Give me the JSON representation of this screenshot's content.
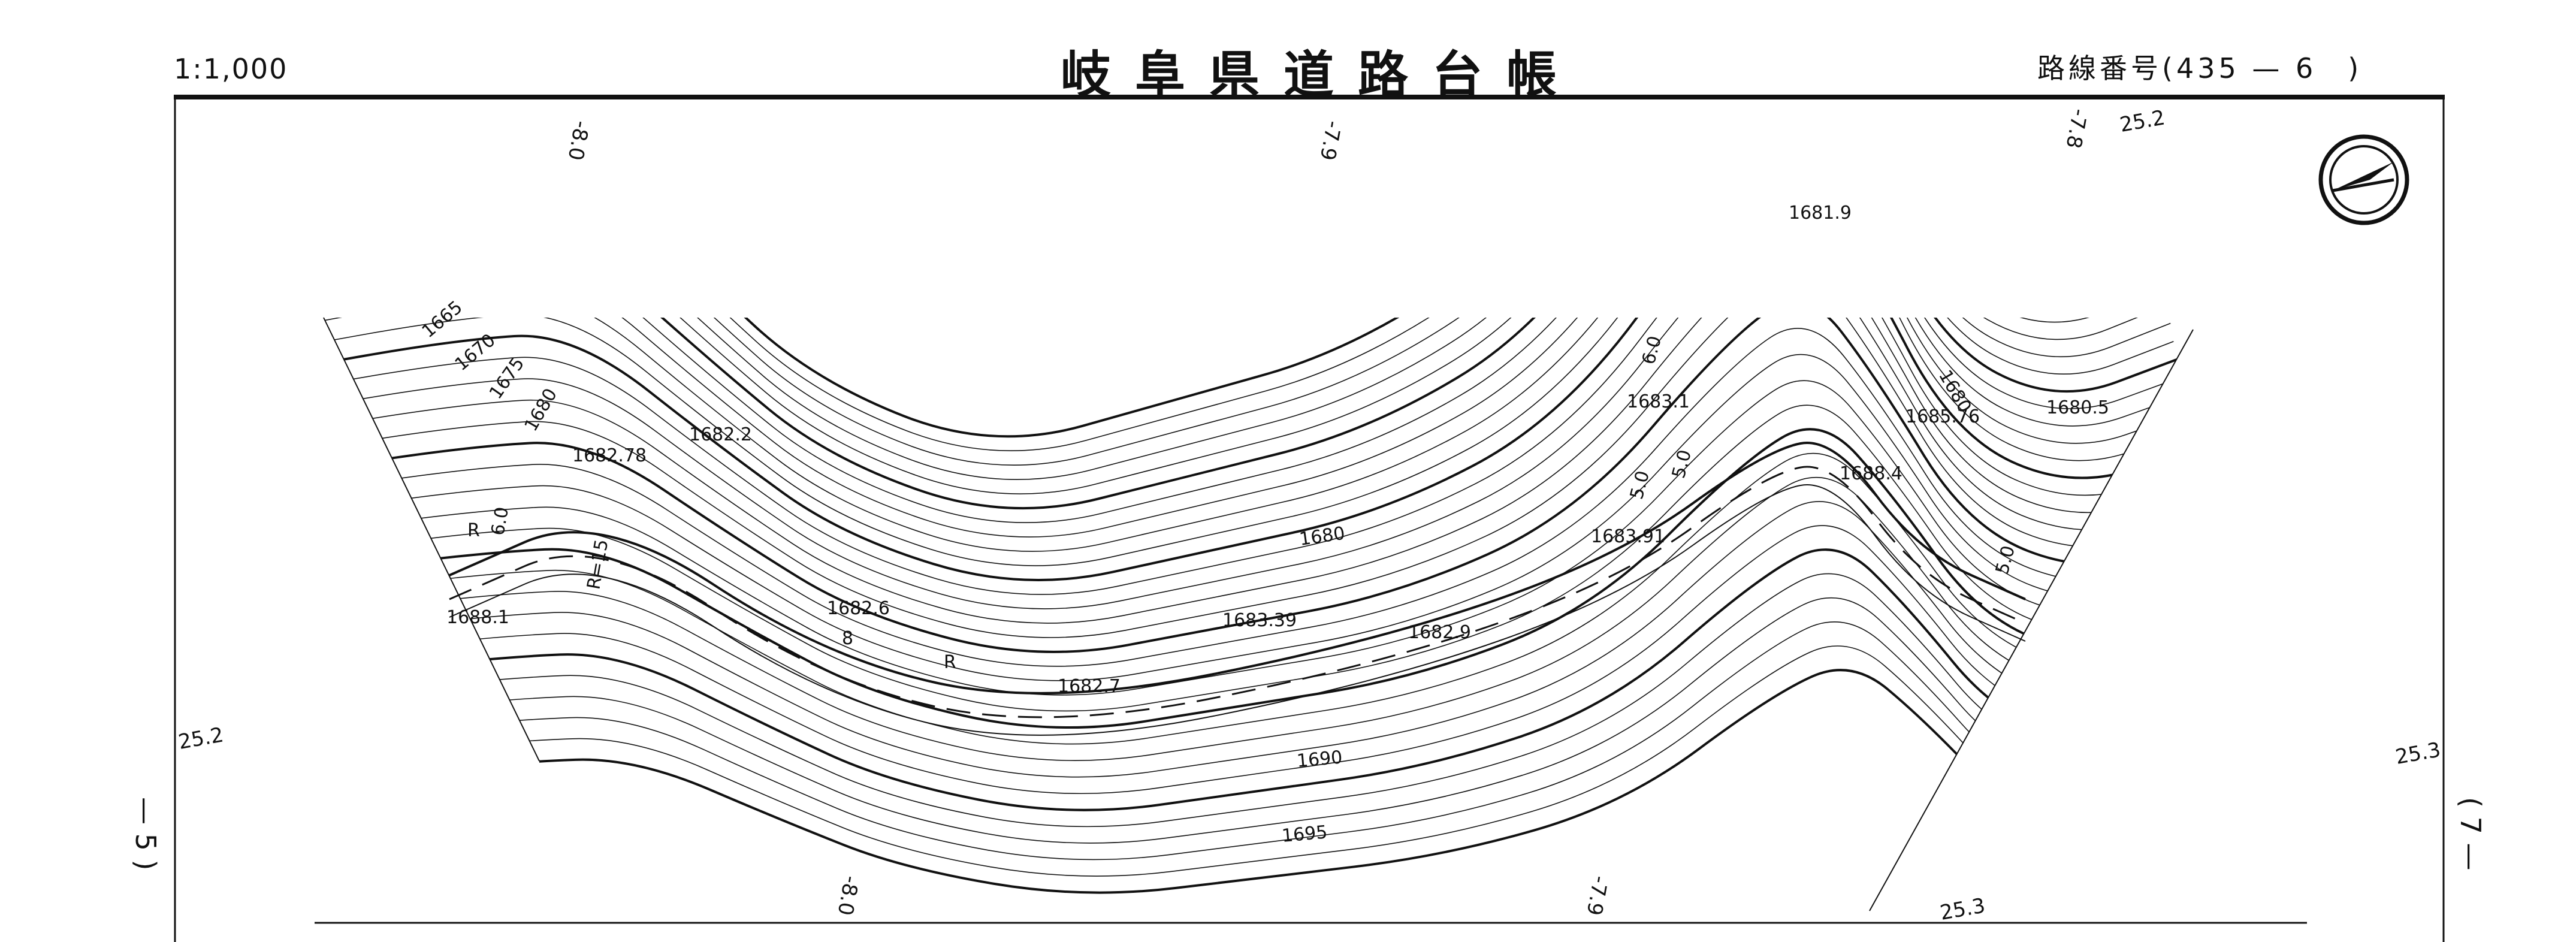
{
  "header": {
    "scale": "1:1,000",
    "title": "岐阜県道路台帳",
    "route_number": "路線番号(435 — 6　)"
  },
  "side": {
    "left_page_ref": "— 5 )",
    "right_page_ref": "( 7 —"
  },
  "grid_labels": {
    "top_1": "-8.0",
    "top_2": "-7.9",
    "top_3": "-7.8",
    "top_right": "25.2",
    "left": "25.2",
    "right": "25.3",
    "bottom_1": "-8.0",
    "bottom_2": "-7.9",
    "bottom_3": "25.3"
  },
  "contour_labels": [
    "1665",
    "1670",
    "1675",
    "1680",
    "1680",
    "1680",
    "1690",
    "1695"
  ],
  "spot_elevations": [
    "1681.9",
    "1682.2",
    "1682.78",
    "1688.1",
    "1682.6",
    "1683.39",
    "1682.9",
    "1682.7",
    "1683.91",
    "1683.1",
    "1685.76",
    "1680.5",
    "1688.4"
  ],
  "road_annotations": [
    "R",
    "6.0",
    "R=15",
    "8",
    "R",
    "6.0",
    "5.0",
    "5.0",
    "5.0"
  ],
  "compass": {
    "icon": "north-arrow-icon"
  },
  "colors": {
    "ink": "#111111",
    "paper": "#ffffff"
  }
}
